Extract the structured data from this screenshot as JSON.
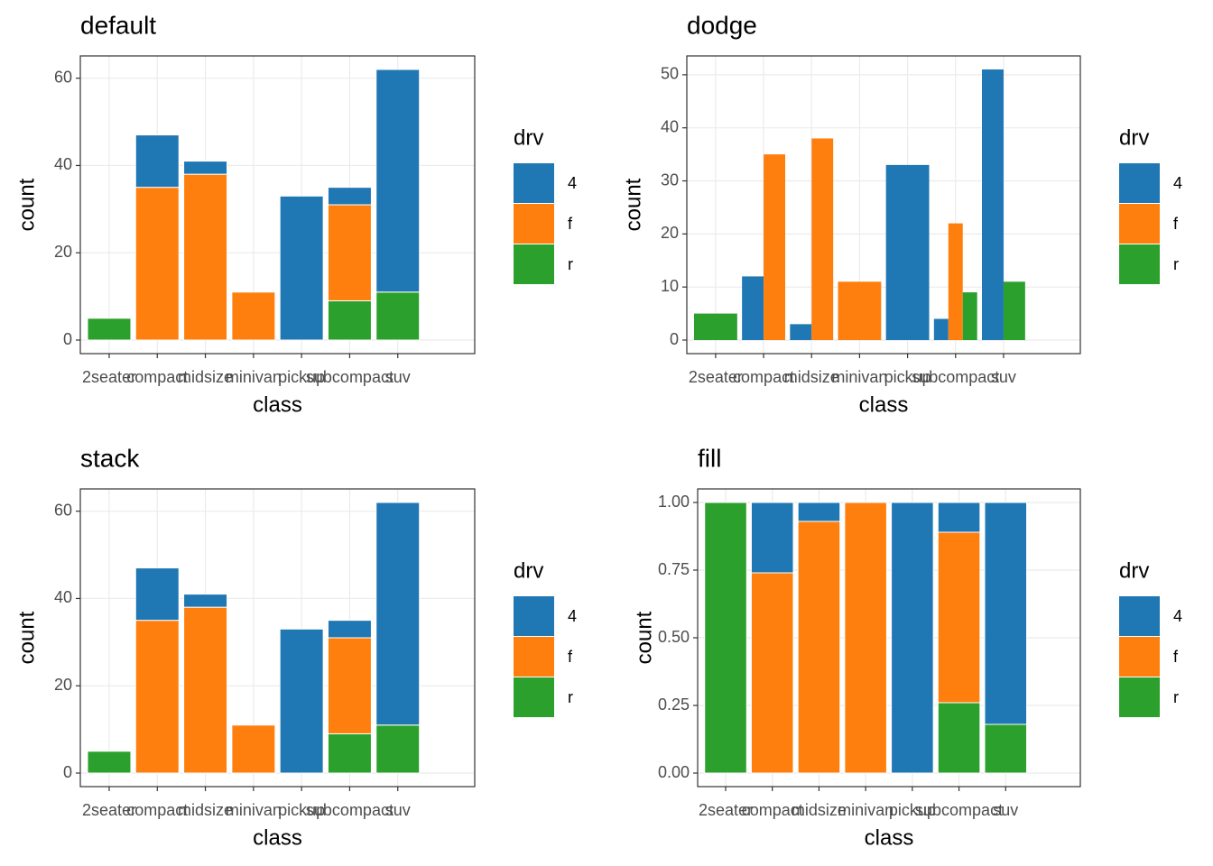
{
  "chart_data": [
    {
      "type": "bar",
      "position": "stack",
      "title": "default",
      "x_label": "class",
      "y_label": "count",
      "legend_title": "drv",
      "categories": [
        "2seater",
        "compact",
        "midsize",
        "minivan",
        "pickup",
        "subcompact",
        "suv"
      ],
      "series": [
        {
          "name": "4",
          "color": "#1f77b4",
          "values": [
            null,
            12,
            3,
            null,
            33,
            4,
            51
          ]
        },
        {
          "name": "f",
          "color": "#ff7f0e",
          "values": [
            null,
            35,
            38,
            11,
            null,
            22,
            null
          ]
        },
        {
          "name": "r",
          "color": "#2ca02c",
          "values": [
            5,
            null,
            null,
            null,
            null,
            9,
            11
          ]
        }
      ],
      "ylim": [
        -3.1,
        65.1
      ],
      "yticks": [
        0,
        20,
        40,
        60
      ],
      "grid": true
    },
    {
      "type": "bar",
      "position": "dodge",
      "title": "dodge",
      "x_label": "class",
      "y_label": "count",
      "legend_title": "drv",
      "categories": [
        "2seater",
        "compact",
        "midsize",
        "minivan",
        "pickup",
        "subcompact",
        "suv"
      ],
      "series": [
        {
          "name": "4",
          "color": "#1f77b4",
          "values": [
            null,
            12,
            3,
            null,
            33,
            4,
            51
          ]
        },
        {
          "name": "f",
          "color": "#ff7f0e",
          "values": [
            null,
            35,
            38,
            11,
            null,
            22,
            null
          ]
        },
        {
          "name": "r",
          "color": "#2ca02c",
          "values": [
            5,
            null,
            null,
            null,
            null,
            9,
            11
          ]
        }
      ],
      "ylim": [
        -2.55,
        53.55
      ],
      "yticks": [
        0,
        10,
        20,
        30,
        40,
        50
      ],
      "grid": true
    },
    {
      "type": "bar",
      "position": "stack",
      "title": "stack",
      "x_label": "class",
      "y_label": "count",
      "legend_title": "drv",
      "categories": [
        "2seater",
        "compact",
        "midsize",
        "minivan",
        "pickup",
        "subcompact",
        "suv"
      ],
      "series": [
        {
          "name": "4",
          "color": "#1f77b4",
          "values": [
            null,
            12,
            3,
            null,
            33,
            4,
            51
          ]
        },
        {
          "name": "f",
          "color": "#ff7f0e",
          "values": [
            null,
            35,
            38,
            11,
            null,
            22,
            null
          ]
        },
        {
          "name": "r",
          "color": "#2ca02c",
          "values": [
            5,
            null,
            null,
            null,
            null,
            9,
            11
          ]
        }
      ],
      "ylim": [
        -3.1,
        65.1
      ],
      "yticks": [
        0,
        20,
        40,
        60
      ],
      "grid": true
    },
    {
      "type": "bar",
      "position": "fill",
      "title": "fill",
      "x_label": "class",
      "y_label": "count",
      "legend_title": "drv",
      "categories": [
        "2seater",
        "compact",
        "midsize",
        "minivan",
        "pickup",
        "subcompact",
        "suv"
      ],
      "series": [
        {
          "name": "4",
          "color": "#1f77b4",
          "values": [
            null,
            0.26,
            0.07,
            null,
            1,
            0.11,
            0.82
          ]
        },
        {
          "name": "f",
          "color": "#ff7f0e",
          "values": [
            null,
            0.74,
            0.93,
            1,
            null,
            0.63,
            null
          ]
        },
        {
          "name": "r",
          "color": "#2ca02c",
          "values": [
            1,
            null,
            null,
            null,
            null,
            0.26,
            0.18
          ]
        }
      ],
      "ylim": [
        -0.05,
        1.05
      ],
      "yticks": [
        {
          "value": 0,
          "label": "0.00"
        },
        {
          "value": 0.25,
          "label": "0.25"
        },
        {
          "value": 0.5,
          "label": "0.50"
        },
        {
          "value": 0.75,
          "label": "0.75"
        },
        {
          "value": 1,
          "label": "1.00"
        }
      ],
      "grid": true
    }
  ]
}
